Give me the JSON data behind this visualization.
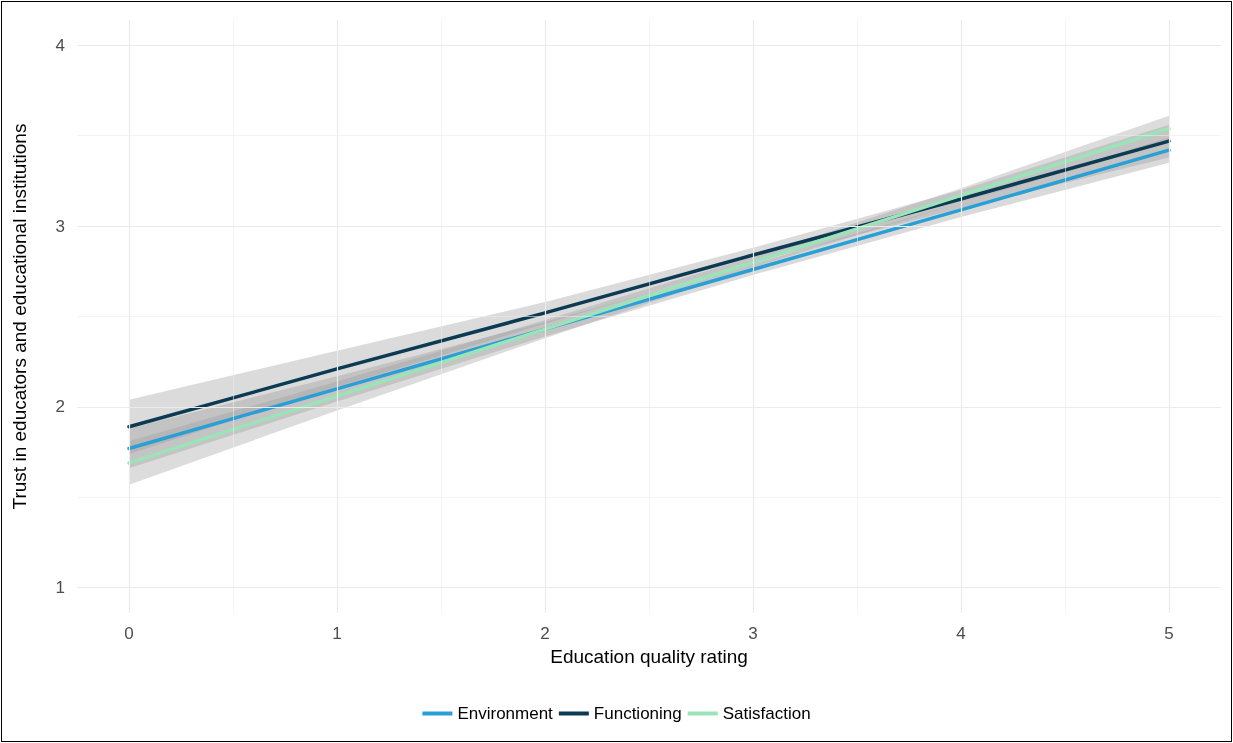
{
  "chart_data": {
    "type": "line",
    "xlabel": "Education quality rating",
    "ylabel": "Trust in educators and educational institutions",
    "xlim": [
      -0.25,
      5.25
    ],
    "xticks": [
      0,
      1,
      2,
      3,
      4,
      5
    ],
    "ylim": [
      0.86,
      4.14
    ],
    "yticks": [
      1,
      2,
      3,
      4
    ],
    "grid": true,
    "legend": "bottom",
    "marker": "none",
    "line_style": "solid",
    "series": [
      {
        "name": "Environment",
        "color": "#2a9fd6",
        "x": [
          0,
          1,
          2,
          3,
          4,
          5
        ],
        "values": [
          1.77,
          2.1,
          2.43,
          2.76,
          3.09,
          3.42
        ],
        "lower": [
          1.66,
          2.03,
          2.39,
          2.73,
          3.05,
          3.35
        ],
        "upper": [
          1.88,
          2.17,
          2.47,
          2.79,
          3.13,
          3.49
        ]
      },
      {
        "name": "Functioning",
        "color": "#0b3a52",
        "x": [
          0,
          1,
          2,
          3,
          4,
          5
        ],
        "values": [
          1.89,
          2.21,
          2.52,
          2.84,
          3.15,
          3.47
        ],
        "lower": [
          1.74,
          2.11,
          2.46,
          2.8,
          3.1,
          3.38
        ],
        "upper": [
          2.04,
          2.31,
          2.58,
          2.88,
          3.2,
          3.56
        ]
      },
      {
        "name": "Satisfaction",
        "color": "#9be3b8",
        "x": [
          0,
          1,
          2,
          3,
          4,
          5
        ],
        "values": [
          1.69,
          2.06,
          2.43,
          2.8,
          3.17,
          3.54
        ],
        "lower": [
          1.57,
          1.98,
          2.38,
          2.77,
          3.13,
          3.47
        ],
        "upper": [
          1.81,
          2.14,
          2.48,
          2.83,
          3.21,
          3.61
        ]
      }
    ]
  }
}
